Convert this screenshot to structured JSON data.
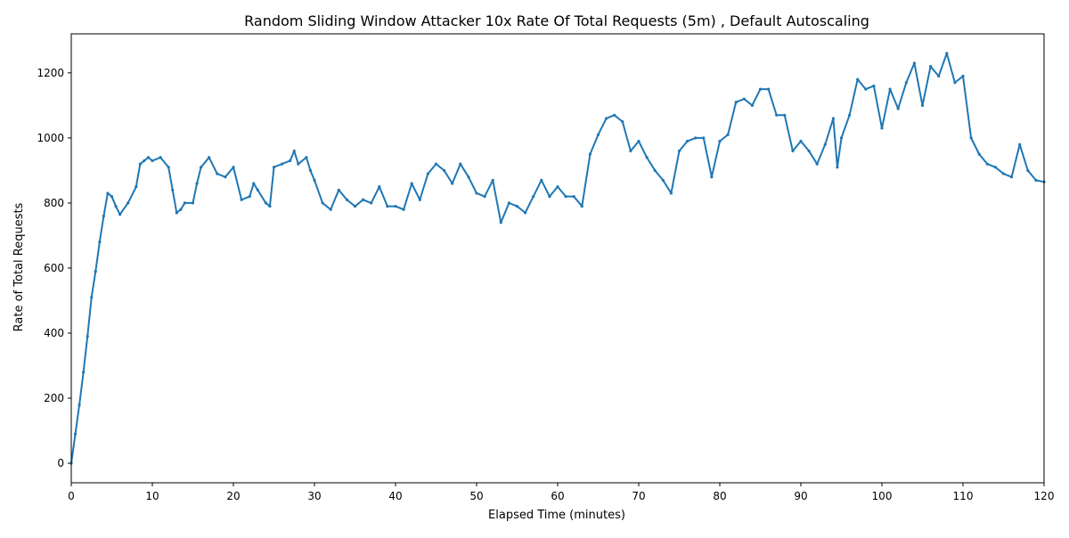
{
  "chart_data": {
    "type": "line",
    "title": "Random Sliding Window Attacker 10x Rate Of Total Requests (5m) , Default Autoscaling",
    "xlabel": "Elapsed Time (minutes)",
    "ylabel": "Rate of Total Requests",
    "xlim": [
      0,
      120
    ],
    "ylim": [
      -60,
      1320
    ],
    "xticks": [
      "0",
      "10",
      "20",
      "30",
      "40",
      "50",
      "60",
      "70",
      "80",
      "90",
      "100",
      "110",
      "120"
    ],
    "yticks": [
      "0",
      "200",
      "400",
      "600",
      "800",
      "1000",
      "1200"
    ],
    "grid": false,
    "line_color": "#1f77b4",
    "series": [
      {
        "x": [
          0,
          0.5,
          1,
          1.5,
          2,
          2.5,
          3,
          3.5,
          4,
          4.5,
          5,
          5.5,
          6,
          7,
          8,
          8.5,
          9,
          9.5,
          10,
          11,
          12,
          12.5,
          13,
          13.5,
          14,
          15,
          15.5,
          16,
          17,
          18,
          19,
          20,
          21,
          22,
          22.5,
          23,
          24,
          24.5,
          25,
          26,
          27,
          27.5,
          28,
          29,
          29.5,
          30,
          31,
          32,
          33,
          34,
          35,
          36,
          37,
          38,
          39,
          40,
          41,
          42,
          43,
          44,
          45,
          46,
          47,
          48,
          49,
          50,
          51,
          52,
          53,
          54,
          55,
          56,
          57,
          58,
          59,
          60,
          61,
          62,
          63,
          64,
          65,
          66,
          67,
          68,
          69,
          70,
          71,
          72,
          73,
          74,
          75,
          76,
          77,
          78,
          79,
          80,
          81,
          82,
          83,
          84,
          85,
          86,
          87,
          88,
          89,
          90,
          91,
          92,
          93,
          94,
          94.5,
          95,
          96,
          97,
          98,
          99,
          100,
          101,
          102,
          103,
          104,
          105,
          106,
          107,
          108,
          109,
          110,
          111,
          112,
          113,
          114,
          115,
          116,
          117,
          118,
          119,
          120
        ],
        "y": [
          0,
          90,
          180,
          280,
          390,
          510,
          590,
          680,
          760,
          830,
          820,
          790,
          765,
          800,
          850,
          920,
          930,
          940,
          930,
          940,
          910,
          840,
          770,
          780,
          800,
          800,
          860,
          910,
          940,
          890,
          880,
          910,
          810,
          820,
          860,
          840,
          800,
          790,
          910,
          920,
          930,
          960,
          920,
          940,
          900,
          870,
          800,
          780,
          840,
          810,
          790,
          810,
          800,
          850,
          790,
          790,
          780,
          860,
          810,
          890,
          920,
          900,
          860,
          920,
          880,
          830,
          820,
          870,
          740,
          800,
          790,
          770,
          820,
          870,
          820,
          850,
          820,
          820,
          790,
          950,
          1010,
          1060,
          1070,
          1050,
          960,
          990,
          940,
          900,
          870,
          830,
          960,
          990,
          1000,
          1000,
          880,
          990,
          1010,
          1110,
          1120,
          1100,
          1150,
          1150,
          1070,
          1070,
          960,
          990,
          960,
          920,
          980,
          1060,
          910,
          1000,
          1070,
          1180,
          1150,
          1160,
          1030,
          1150,
          1090,
          1170,
          1230,
          1100,
          1220,
          1190,
          1260,
          1170,
          1190,
          1000,
          950,
          920,
          910,
          890,
          880,
          980,
          900,
          870,
          865
        ]
      }
    ]
  }
}
